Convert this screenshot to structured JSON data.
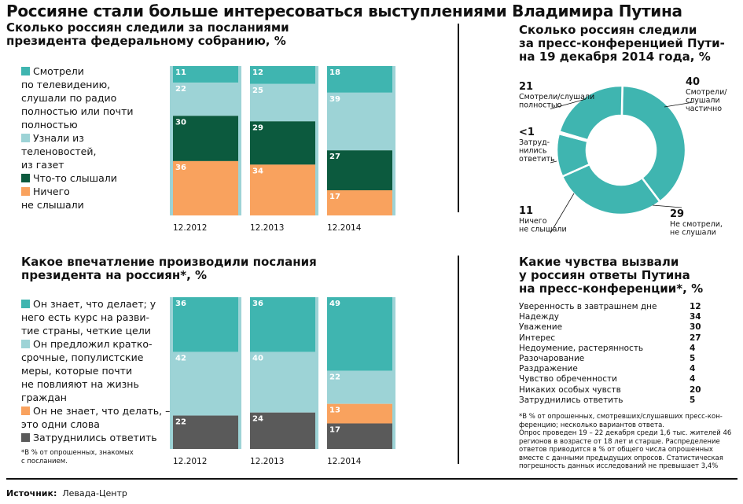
{
  "title": "Россияне стали больше интересоваться выступлениями Владимира Путина",
  "chart1": {
    "title_line1": "Сколько россиян следили за посланиями",
    "title_line2": "президента федеральному собранию, %",
    "legend": [
      {
        "color": "#3fb5b0",
        "lines": [
          "Смотрели",
          "по телевидению,",
          "слушали по радио",
          "полностью или почти",
          "полностью"
        ]
      },
      {
        "color": "#9dd3d6",
        "lines": [
          "Узнали из",
          "теленовостей,",
          "из газет"
        ]
      },
      {
        "color": "#0c5a3e",
        "lines": [
          "Что-то слышали"
        ]
      },
      {
        "color": "#f9a25e",
        "lines": [
          "Ничего",
          "не слышали"
        ]
      }
    ]
  },
  "chart2": {
    "title_line1": "Сколько россиян следили",
    "title_line2": "за пресс-конференцией Пути-",
    "title_line3": "на 19 декабря 2014 года, %"
  },
  "chart3": {
    "title_line1": "Какое впечатление производили послания",
    "title_line2": "президента на россиян*, %",
    "legend": [
      {
        "color": "#3fb5b0",
        "lines": [
          "Он знает, что делает; у",
          "него есть курс на разви-",
          "тие страны, четкие цели"
        ]
      },
      {
        "color": "#9dd3d6",
        "lines": [
          "Он предложил кратко-",
          "срочные, популистские",
          "меры, которые почти",
          "не повлияют на жизнь",
          "граждан"
        ]
      },
      {
        "color": "#f9a25e",
        "lines": [
          "Он не знает, что делать, –",
          "это одни слова"
        ]
      },
      {
        "color": "#5a5a5a",
        "lines": [
          "Затруднились ответить"
        ]
      }
    ],
    "note_line1": "*В % от опрошенных, знакомых",
    "note_line2": "с посланием."
  },
  "chart4": {
    "title_line1": "Какие чувства вызвали",
    "title_line2": "у россиян ответы Путина",
    "title_line3": "на пресс-конференции*, %",
    "note_lines": [
      "*В % от опрошенных, смотревших/слушавших пресс-кон-",
      "ференцию; несколько вариантов ответа.",
      "Опрос проведен 19 – 22 декабря среди 1,6 тыс. жителей 46",
      "регионов в возрасте от 18 лет и старше. Распределение",
      "ответов приводится в % от общего числа опрошенных",
      "вместе с данными предыдущих опросов. Статистическая",
      "погрешность данных исследований не превышает 3,4%"
    ]
  },
  "source_label": "Источник:",
  "source_value": "Левада-Центр",
  "chart_data": [
    {
      "type": "bar",
      "stacked": true,
      "categories": [
        "12.2012",
        "12.2013",
        "12.2014"
      ],
      "series": [
        {
          "name": "Смотрели по телевидению, слушали по радио полностью или почти полностью",
          "color": "#3fb5b0",
          "values": [
            11,
            12,
            18
          ]
        },
        {
          "name": "Узнали из теленовостей, из газет",
          "color": "#9dd3d6",
          "values": [
            22,
            25,
            39
          ]
        },
        {
          "name": "Что-то слышали",
          "color": "#0c5a3e",
          "values": [
            30,
            29,
            27
          ]
        },
        {
          "name": "Ничего не слышали",
          "color": "#f9a25e",
          "values": [
            36,
            34,
            17
          ]
        }
      ]
    },
    {
      "type": "pie",
      "donut": true,
      "slices": [
        {
          "label_value": "40",
          "label_lines": [
            "Смотрели/",
            "слушали",
            "частично"
          ],
          "value": 40,
          "color": "#3fb5b0"
        },
        {
          "label_value": "29",
          "label_lines": [
            "Не смотрели,",
            "не слушали"
          ],
          "value": 29,
          "color": "#3fb5b0"
        },
        {
          "label_value": "11",
          "label_lines": [
            "Ничего",
            "не слышали"
          ],
          "value": 11,
          "color": "#3fb5b0"
        },
        {
          "label_value": "<1",
          "label_lines": [
            "Затруд-",
            "нились",
            "ответить"
          ],
          "value": 0.5,
          "color": "#3fb5b0"
        },
        {
          "label_value": "21",
          "label_lines": [
            "Смотрели/слушали",
            "полностью"
          ],
          "value": 21,
          "color": "#3fb5b0"
        }
      ]
    },
    {
      "type": "bar",
      "stacked": true,
      "categories": [
        "12.2012",
        "12.2013",
        "12.2014"
      ],
      "series": [
        {
          "name": "Он знает, что делает; у него есть курс на развитие страны, четкие цели",
          "color": "#3fb5b0",
          "values": [
            36,
            36,
            49
          ]
        },
        {
          "name": "Он предложил краткосрочные, популистские меры, которые почти не повлияют на жизнь граждан",
          "color": "#9dd3d6",
          "values": [
            42,
            40,
            22
          ]
        },
        {
          "name": "Он не знает, что делать, – это одни слова",
          "color": "#f9a25e",
          "values": [
            0,
            0,
            13
          ]
        },
        {
          "name": "Затруднились ответить",
          "color": "#5a5a5a",
          "values": [
            22,
            24,
            17
          ]
        }
      ]
    },
    {
      "type": "table",
      "rows": [
        {
          "label": "Уверенность в завтрашнем дне",
          "value": "12"
        },
        {
          "label": "Надежду",
          "value": "34"
        },
        {
          "label": "Уважение",
          "value": "30"
        },
        {
          "label": "Интерес",
          "value": "27"
        },
        {
          "label": "Недоумение, растерянность",
          "value": "4"
        },
        {
          "label": "Разочарование",
          "value": "5"
        },
        {
          "label": "Раздражение",
          "value": "4"
        },
        {
          "label": "Чувство обреченности",
          "value": "4"
        },
        {
          "label": "Никаких особых чувств",
          "value": "20"
        },
        {
          "label": "Затруднились ответить",
          "value": "5"
        }
      ]
    }
  ]
}
